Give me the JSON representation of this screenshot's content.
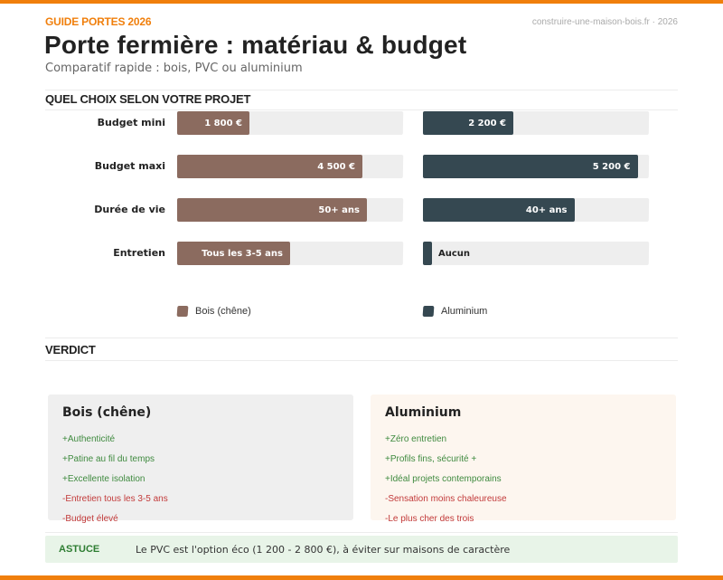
{
  "header": {
    "kicker": "GUIDE PORTES 2026",
    "source": "construire-une-maison-bois.fr · 2026",
    "title": "Porte fermière : matériau & budget",
    "subtitle": "Comparatif rapide : bois, PVC ou aluminium"
  },
  "sections": {
    "chart_heading": "QUEL CHOIX SELON VOTRE PROJET",
    "verdict_heading": "VERDICT"
  },
  "colors": {
    "accent": "#f07f0c",
    "bois": "#8b6b5f",
    "aluminium": "#354851",
    "track": "#eeeeee",
    "pro": "#3f8a3f",
    "con": "#c23a3a",
    "tip_bg": "#e8f4e8"
  },
  "chart_data": {
    "type": "bar",
    "orientation": "horizontal",
    "title": "QUEL CHOIX SELON VOTRE PROJET",
    "categories": [
      "Budget mini",
      "Budget maxi",
      "Durée de vie",
      "Entretien"
    ],
    "series": [
      {
        "name": "Bois (chêne)",
        "color": "#8b6b5f",
        "fill_pct": [
          32,
          82,
          84,
          50
        ],
        "labels": [
          "1 800 €",
          "4 500 €",
          "50+ ans",
          "Tous les 3-5 ans"
        ]
      },
      {
        "name": "Aluminium",
        "color": "#354851",
        "fill_pct": [
          40,
          95,
          67,
          4
        ],
        "labels": [
          "2 200 €",
          "5 200 €",
          "40+ ans",
          "Aucun"
        ]
      }
    ],
    "legend": [
      "Bois (chêne)",
      "Aluminium"
    ],
    "legend_position": "bottom",
    "grid": false
  },
  "chart": {
    "rows": [
      {
        "label": "Budget mini",
        "bois": {
          "value": "1 800 €",
          "pct": 32
        },
        "alu": {
          "value": "2 200 €",
          "pct": 40
        }
      },
      {
        "label": "Budget maxi",
        "bois": {
          "value": "4 500 €",
          "pct": 82
        },
        "alu": {
          "value": "5 200 €",
          "pct": 95
        }
      },
      {
        "label": "Durée de vie",
        "bois": {
          "value": "50+ ans",
          "pct": 84
        },
        "alu": {
          "value": "40+ ans",
          "pct": 67
        }
      },
      {
        "label": "Entretien",
        "bois": {
          "value": "Tous les 3-5 ans",
          "pct": 50
        },
        "alu": {
          "value": "Aucun",
          "pct": 4
        }
      }
    ],
    "legend": {
      "bois": "Bois (chêne)",
      "alu": "Aluminium"
    }
  },
  "verdict": {
    "bois": {
      "title": "Bois (chêne)",
      "points": [
        {
          "type": "pro",
          "text": "+Authenticité"
        },
        {
          "type": "pro",
          "text": "+Patine au fil du temps"
        },
        {
          "type": "pro",
          "text": "+Excellente isolation"
        },
        {
          "type": "con",
          "text": "-Entretien tous les 3-5 ans"
        },
        {
          "type": "con",
          "text": "-Budget élevé"
        }
      ]
    },
    "alu": {
      "title": "Aluminium",
      "points": [
        {
          "type": "pro",
          "text": "+Zéro entretien"
        },
        {
          "type": "pro",
          "text": "+Profils fins, sécurité +"
        },
        {
          "type": "pro",
          "text": "+Idéal projets contemporains"
        },
        {
          "type": "con",
          "text": "-Sensation moins chaleureuse"
        },
        {
          "type": "con",
          "text": "-Le plus cher des trois"
        }
      ]
    }
  },
  "tip": {
    "label": "ASTUCE",
    "text": "Le PVC est l'option éco (1 200 - 2 800 €), à éviter sur maisons de caractère"
  }
}
